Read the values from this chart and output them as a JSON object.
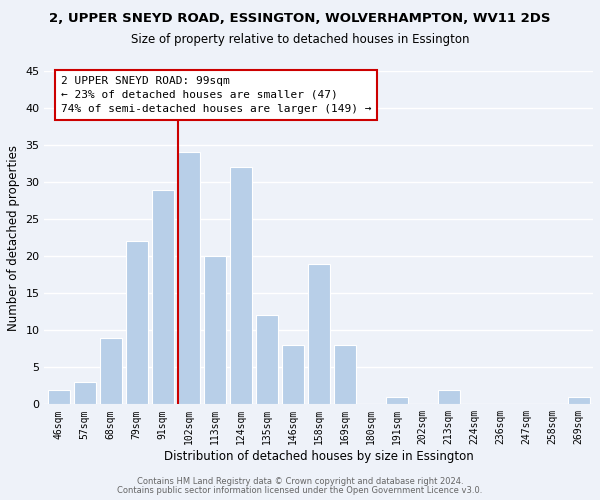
{
  "title": "2, UPPER SNEYD ROAD, ESSINGTON, WOLVERHAMPTON, WV11 2DS",
  "subtitle": "Size of property relative to detached houses in Essington",
  "xlabel": "Distribution of detached houses by size in Essington",
  "ylabel": "Number of detached properties",
  "bar_color": "#b8cfe8",
  "background_color": "#eef2f9",
  "grid_color": "#ffffff",
  "bins": [
    "46sqm",
    "57sqm",
    "68sqm",
    "79sqm",
    "91sqm",
    "102sqm",
    "113sqm",
    "124sqm",
    "135sqm",
    "146sqm",
    "158sqm",
    "169sqm",
    "180sqm",
    "191sqm",
    "202sqm",
    "213sqm",
    "224sqm",
    "236sqm",
    "247sqm",
    "258sqm",
    "269sqm"
  ],
  "values": [
    2,
    3,
    9,
    22,
    29,
    34,
    20,
    32,
    12,
    8,
    19,
    8,
    0,
    1,
    0,
    2,
    0,
    0,
    0,
    0,
    1
  ],
  "ylim": [
    0,
    45
  ],
  "yticks": [
    0,
    5,
    10,
    15,
    20,
    25,
    30,
    35,
    40,
    45
  ],
  "vline_color": "#cc0000",
  "annotation_title": "2 UPPER SNEYD ROAD: 99sqm",
  "annotation_line1": "← 23% of detached houses are smaller (47)",
  "annotation_line2": "74% of semi-detached houses are larger (149) →",
  "annotation_box_color": "#ffffff",
  "annotation_box_edge_color": "#cc0000",
  "footer1": "Contains HM Land Registry data © Crown copyright and database right 2024.",
  "footer2": "Contains public sector information licensed under the Open Government Licence v3.0."
}
